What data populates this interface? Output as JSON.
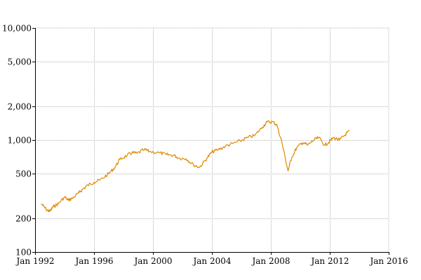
{
  "chart_data": {
    "type": "line",
    "title": "",
    "xlabel": "",
    "ylabel": "",
    "y_scale": "log",
    "xlim": [
      "1992-01",
      "2016-01"
    ],
    "ylim": [
      100,
      10000
    ],
    "grid": true,
    "x_ticks": [
      {
        "date": "1992-01",
        "label": "Jan 1992"
      },
      {
        "date": "1996-01",
        "label": "Jan 1996"
      },
      {
        "date": "2000-01",
        "label": "Jan 2000"
      },
      {
        "date": "2004-01",
        "label": "Jan 2004"
      },
      {
        "date": "2008-01",
        "label": "Jan 2008"
      },
      {
        "date": "2012-01",
        "label": "Jan 2012"
      },
      {
        "date": "2016-01",
        "label": "Jan 2016"
      }
    ],
    "y_ticks": [
      {
        "value": 100,
        "label": "100"
      },
      {
        "value": 200,
        "label": "200"
      },
      {
        "value": 500,
        "label": "500"
      },
      {
        "value": 1000,
        "label": "1,000"
      },
      {
        "value": 2000,
        "label": "2,000"
      },
      {
        "value": 5000,
        "label": "5,000"
      },
      {
        "value": 10000,
        "label": "10,000"
      }
    ],
    "series": [
      {
        "color": "#e08a00",
        "x": [
          "1992-06",
          "1992-10",
          "1993-01",
          "1993-04",
          "1993-08",
          "1994-01",
          "1994-04",
          "1994-08",
          "1995-01",
          "1995-04",
          "1995-08",
          "1996-01",
          "1996-06",
          "1997-01",
          "1997-06",
          "1997-10",
          "1998-04",
          "1998-08",
          "1998-12",
          "1999-06",
          "1999-10",
          "2000-06",
          "2000-12",
          "2001-06",
          "2001-10",
          "2002-04",
          "2002-10",
          "2003-03",
          "2003-09",
          "2004-01",
          "2004-06",
          "2004-12",
          "2005-06",
          "2005-12",
          "2006-06",
          "2006-12",
          "2007-06",
          "2007-10",
          "2008-03",
          "2008-06",
          "2008-10",
          "2009-03",
          "2009-06",
          "2009-10",
          "2010-03",
          "2010-07",
          "2010-12",
          "2011-04",
          "2011-09",
          "2011-12",
          "2012-04",
          "2012-09",
          "2013-01",
          "2013-05"
        ],
        "y": [
          270,
          240,
          230,
          255,
          270,
          310,
          290,
          305,
          340,
          365,
          395,
          420,
          440,
          500,
          570,
          670,
          730,
          770,
          760,
          820,
          790,
          770,
          740,
          730,
          690,
          680,
          600,
          570,
          690,
          780,
          820,
          880,
          930,
          980,
          1050,
          1100,
          1300,
          1450,
          1450,
          1350,
          950,
          530,
          700,
          850,
          950,
          900,
          1000,
          1050,
          900,
          950,
          1050,
          1000,
          1100,
          1200
        ]
      }
    ]
  }
}
